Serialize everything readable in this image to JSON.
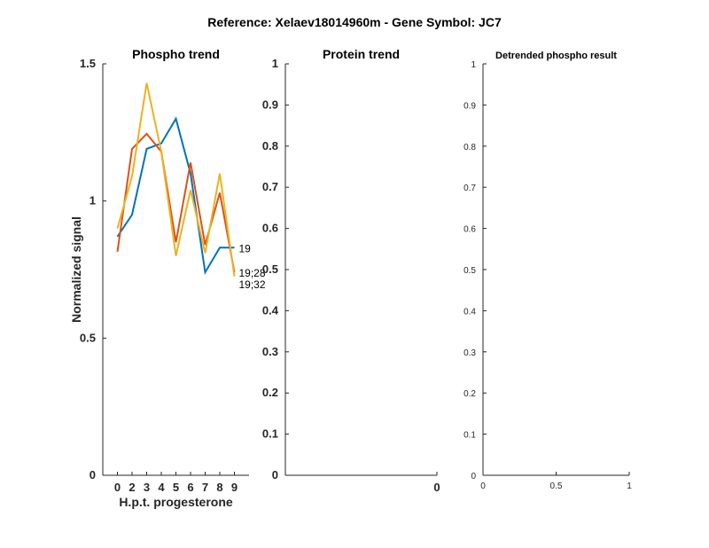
{
  "chart_data": [
    {
      "type": "line",
      "title": "Phospho trend",
      "xlabel": "H.p.t. progesterone",
      "ylabel": "Normalized signal",
      "categories": [
        "0",
        "2",
        "3",
        "4",
        "5",
        "6",
        "7",
        "8",
        "9"
      ],
      "ylim": [
        0,
        1.5
      ],
      "yticks": [
        "0",
        "0.5",
        "1",
        "1.5"
      ],
      "series": [
        {
          "name": "19",
          "color": "#0072BD",
          "values": [
            0.87,
            0.95,
            1.19,
            1.21,
            1.3,
            1.1,
            0.74,
            0.83,
            0.83
          ]
        },
        {
          "name": "19;28",
          "color": "#D95319",
          "values": [
            0.815,
            1.19,
            1.245,
            1.18,
            0.85,
            1.14,
            0.84,
            1.03,
            0.74
          ]
        },
        {
          "name": "19;32",
          "color": "#EDB120",
          "values": [
            0.9,
            1.09,
            1.43,
            1.18,
            0.8,
            1.04,
            0.81,
            1.1,
            0.725
          ]
        }
      ]
    },
    {
      "type": "line",
      "title": "Protein trend",
      "ylim": [
        0,
        1
      ],
      "yticks": [
        "0",
        "0.1",
        "0.2",
        "0.3",
        "0.4",
        "0.5",
        "0.6",
        "0.7",
        "0.8",
        "0.9",
        "1"
      ],
      "xticks": [
        "0"
      ],
      "series": []
    },
    {
      "type": "line",
      "title": "Detrended phospho result",
      "ylim": [
        0,
        1
      ],
      "yticks": [
        "0",
        "0.1",
        "0.2",
        "0.3",
        "0.4",
        "0.5",
        "0.6",
        "0.7",
        "0.8",
        "0.9",
        "1"
      ],
      "xticks": [
        "0",
        "0.5",
        "1"
      ],
      "series": []
    }
  ],
  "suptitle": "Reference:  Xelaev18014960m - Gene Symbol:  JC7"
}
